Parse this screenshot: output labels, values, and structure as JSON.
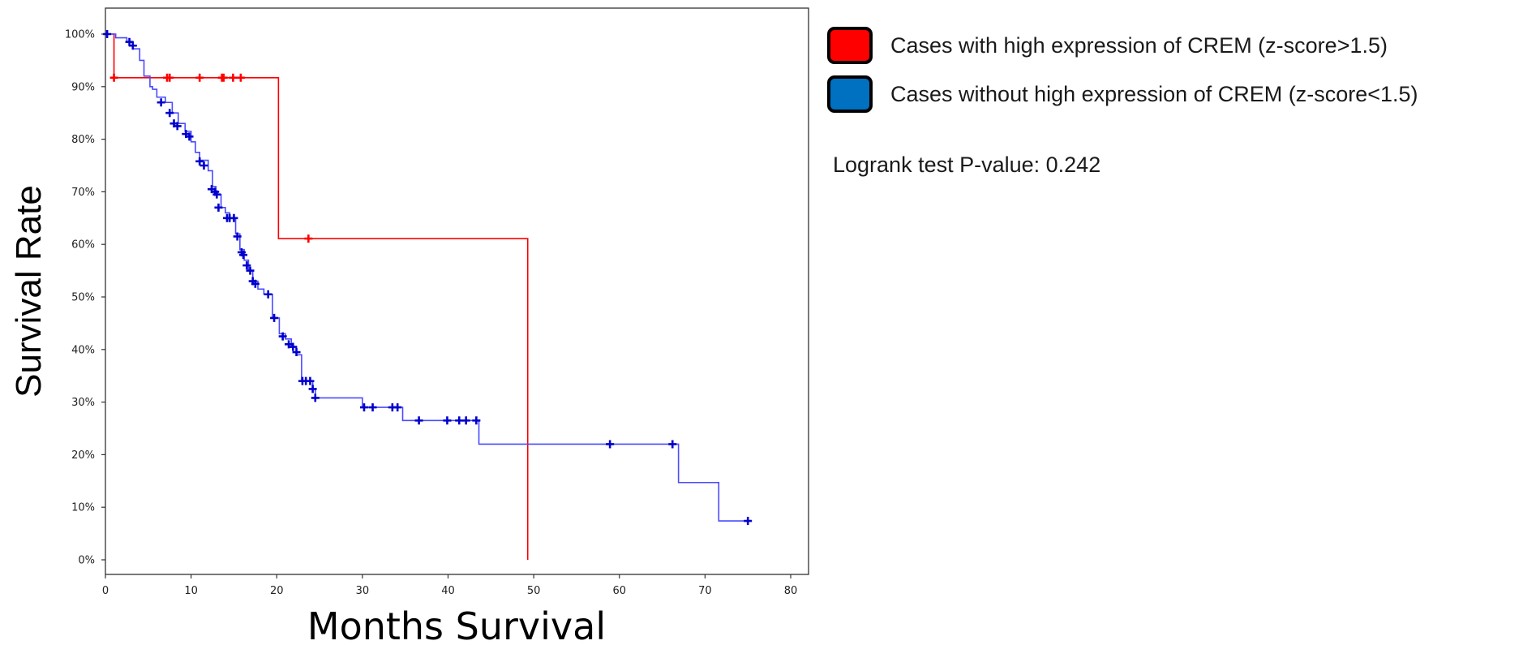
{
  "chart_data": {
    "type": "line",
    "xlabel": "Months Survival",
    "ylabel": "Survival Rate",
    "xlim": [
      0,
      82
    ],
    "ylim": [
      0,
      100
    ],
    "x_ticks": [
      0,
      10,
      20,
      30,
      40,
      50,
      60,
      70,
      80
    ],
    "y_ticks": [
      0,
      10,
      20,
      30,
      40,
      50,
      60,
      70,
      80,
      90,
      100
    ],
    "y_tick_suffix": "%",
    "grid": false,
    "legend_position": "top-right-outside",
    "series": [
      {
        "name": "Cases with high expression of CREM (z-score>1.5)",
        "color": "#ff0000",
        "marker_color": "#ff0000",
        "steps": [
          [
            0,
            100
          ],
          [
            1.0,
            91.7
          ],
          [
            20.2,
            61.1
          ],
          [
            49.3,
            0
          ]
        ],
        "end_x": 49.3,
        "censored": [
          [
            1.0,
            91.7
          ],
          [
            7.2,
            91.7
          ],
          [
            7.5,
            91.7
          ],
          [
            11.0,
            91.7
          ],
          [
            13.6,
            91.7
          ],
          [
            13.8,
            91.7
          ],
          [
            14.9,
            91.7
          ],
          [
            15.8,
            91.7
          ],
          [
            23.7,
            61.1
          ]
        ]
      },
      {
        "name": "Cases without high expression of CREM (z-score<1.5)",
        "color": "#4a4aff",
        "marker_color": "#0000cc",
        "steps": [
          [
            0,
            100
          ],
          [
            1.2,
            99.3
          ],
          [
            2.5,
            98.5
          ],
          [
            3.2,
            97.2
          ],
          [
            4.0,
            95.0
          ],
          [
            4.5,
            92.0
          ],
          [
            5.2,
            90.0
          ],
          [
            5.5,
            89.5
          ],
          [
            6.0,
            88.0
          ],
          [
            7.0,
            87.0
          ],
          [
            7.8,
            85.0
          ],
          [
            8.5,
            83.0
          ],
          [
            9.3,
            81.5
          ],
          [
            10.0,
            79.5
          ],
          [
            10.5,
            77.5
          ],
          [
            11.0,
            76.0
          ],
          [
            12.0,
            74.0
          ],
          [
            12.5,
            71.0
          ],
          [
            12.9,
            69.5
          ],
          [
            13.5,
            67.0
          ],
          [
            14.0,
            66.0
          ],
          [
            14.5,
            65.0
          ],
          [
            15.2,
            62.0
          ],
          [
            15.7,
            59.0
          ],
          [
            16.2,
            57.0
          ],
          [
            16.7,
            55.0
          ],
          [
            17.2,
            53.0
          ],
          [
            17.8,
            51.5
          ],
          [
            18.5,
            50.5
          ],
          [
            19.5,
            46.0
          ],
          [
            20.3,
            43.0
          ],
          [
            21.0,
            42.0
          ],
          [
            21.7,
            40.5
          ],
          [
            22.3,
            39.0
          ],
          [
            22.9,
            34.0
          ],
          [
            24.2,
            32.5
          ],
          [
            24.5,
            30.8
          ],
          [
            30.0,
            29.0
          ],
          [
            34.7,
            26.5
          ],
          [
            43.6,
            22.0
          ],
          [
            66.9,
            14.7
          ],
          [
            71.6,
            7.4
          ]
        ],
        "end_x": 75.0,
        "censored": [
          [
            0.2,
            100
          ],
          [
            2.8,
            98.5
          ],
          [
            3.2,
            97.8
          ],
          [
            6.5,
            87.0
          ],
          [
            7.5,
            85.0
          ],
          [
            8.0,
            83.0
          ],
          [
            8.4,
            82.5
          ],
          [
            9.4,
            81.0
          ],
          [
            9.8,
            80.5
          ],
          [
            11.0,
            75.8
          ],
          [
            11.5,
            75.0
          ],
          [
            12.4,
            70.5
          ],
          [
            12.8,
            70.0
          ],
          [
            13.0,
            69.5
          ],
          [
            13.2,
            67.0
          ],
          [
            14.2,
            65.0
          ],
          [
            14.5,
            65.0
          ],
          [
            15.0,
            65.0
          ],
          [
            15.4,
            61.5
          ],
          [
            15.9,
            58.5
          ],
          [
            16.1,
            58.0
          ],
          [
            16.5,
            56.0
          ],
          [
            16.9,
            55.0
          ],
          [
            17.2,
            53.0
          ],
          [
            17.5,
            52.5
          ],
          [
            19.0,
            50.5
          ],
          [
            19.7,
            46.0
          ],
          [
            20.7,
            42.5
          ],
          [
            21.4,
            41.0
          ],
          [
            21.9,
            40.5
          ],
          [
            22.3,
            39.5
          ],
          [
            23.0,
            34.0
          ],
          [
            23.4,
            34.0
          ],
          [
            23.9,
            34.0
          ],
          [
            24.2,
            32.5
          ],
          [
            24.5,
            30.8
          ],
          [
            30.2,
            29.0
          ],
          [
            31.2,
            29.0
          ],
          [
            33.5,
            29.0
          ],
          [
            34.1,
            29.0
          ],
          [
            36.6,
            26.5
          ],
          [
            39.9,
            26.5
          ],
          [
            41.3,
            26.5
          ],
          [
            42.1,
            26.5
          ],
          [
            43.3,
            26.5
          ],
          [
            58.9,
            22.0
          ],
          [
            66.2,
            22.0
          ],
          [
            75.0,
            7.4
          ]
        ]
      }
    ]
  },
  "legend": {
    "items": [
      {
        "label": "Cases with high expression of CREM (z-score>1.5)",
        "color": "#ff0000"
      },
      {
        "label": "Cases without high expression of CREM (z-score<1.5)",
        "color": "#0070c0"
      }
    ]
  },
  "annotation": {
    "logrank": "Logrank test P-value: 0.242"
  }
}
